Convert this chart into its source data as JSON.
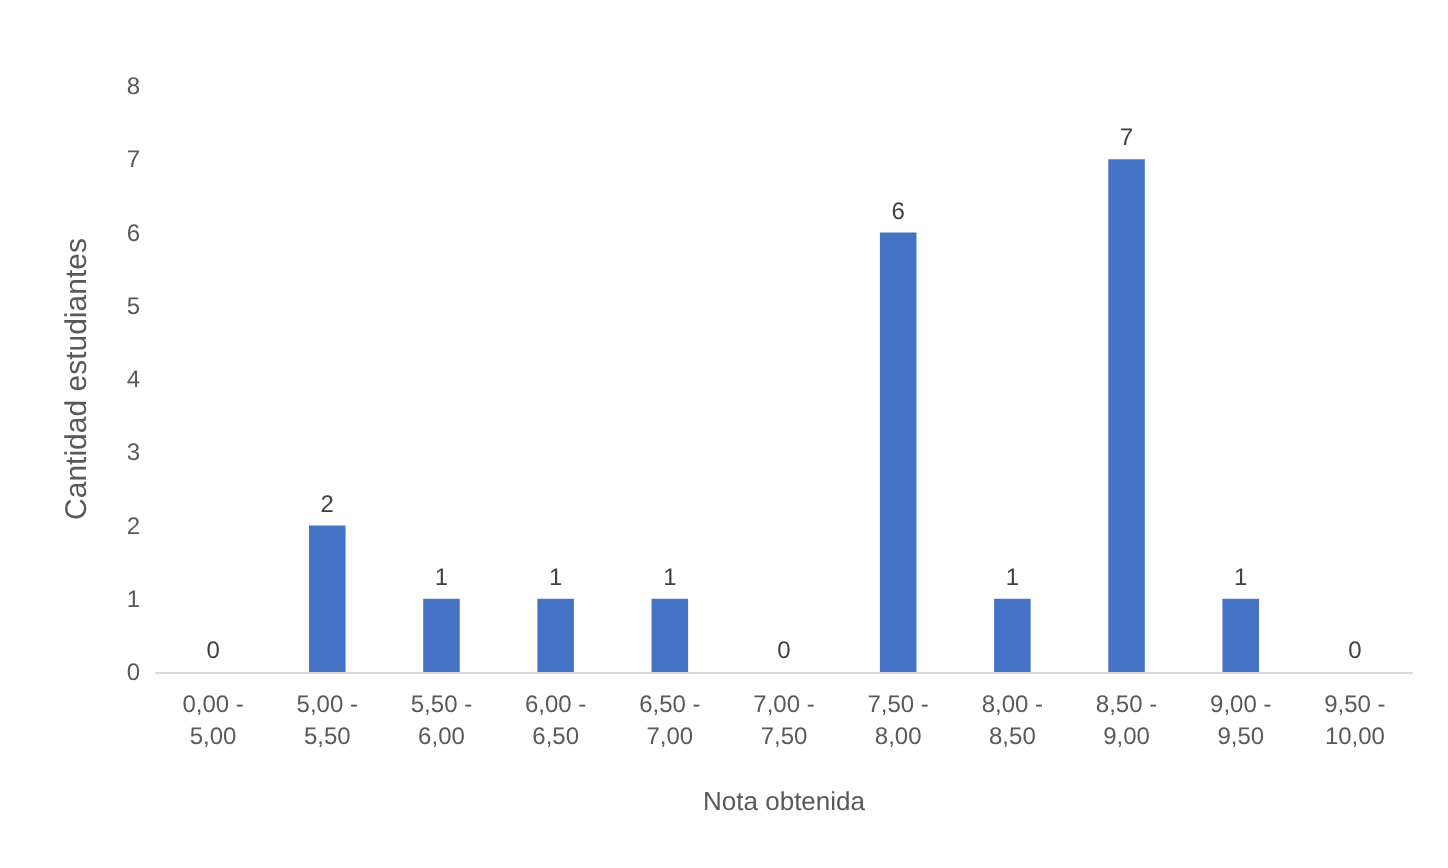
{
  "chart_data": {
    "type": "bar",
    "xlabel": "Nota obtenida",
    "ylabel": "Cantidad estudiantes",
    "categories": [
      "0,00 - 5,00",
      "5,00 - 5,50",
      "5,50 - 6,00",
      "6,00 - 6,50",
      "6,50 - 7,00",
      "7,00 - 7,50",
      "7,50 - 8,00",
      "8,00 - 8,50",
      "8,50 - 9,00",
      "9,00 - 9,50",
      "9,50 - 10,00"
    ],
    "values": [
      0,
      2,
      1,
      1,
      1,
      0,
      6,
      1,
      7,
      1,
      0
    ],
    "color": "#4472c4",
    "ylim": [
      0,
      8
    ],
    "yticks": [
      0,
      1,
      2,
      3,
      4,
      5,
      6,
      7,
      8
    ],
    "data_labels": true
  }
}
